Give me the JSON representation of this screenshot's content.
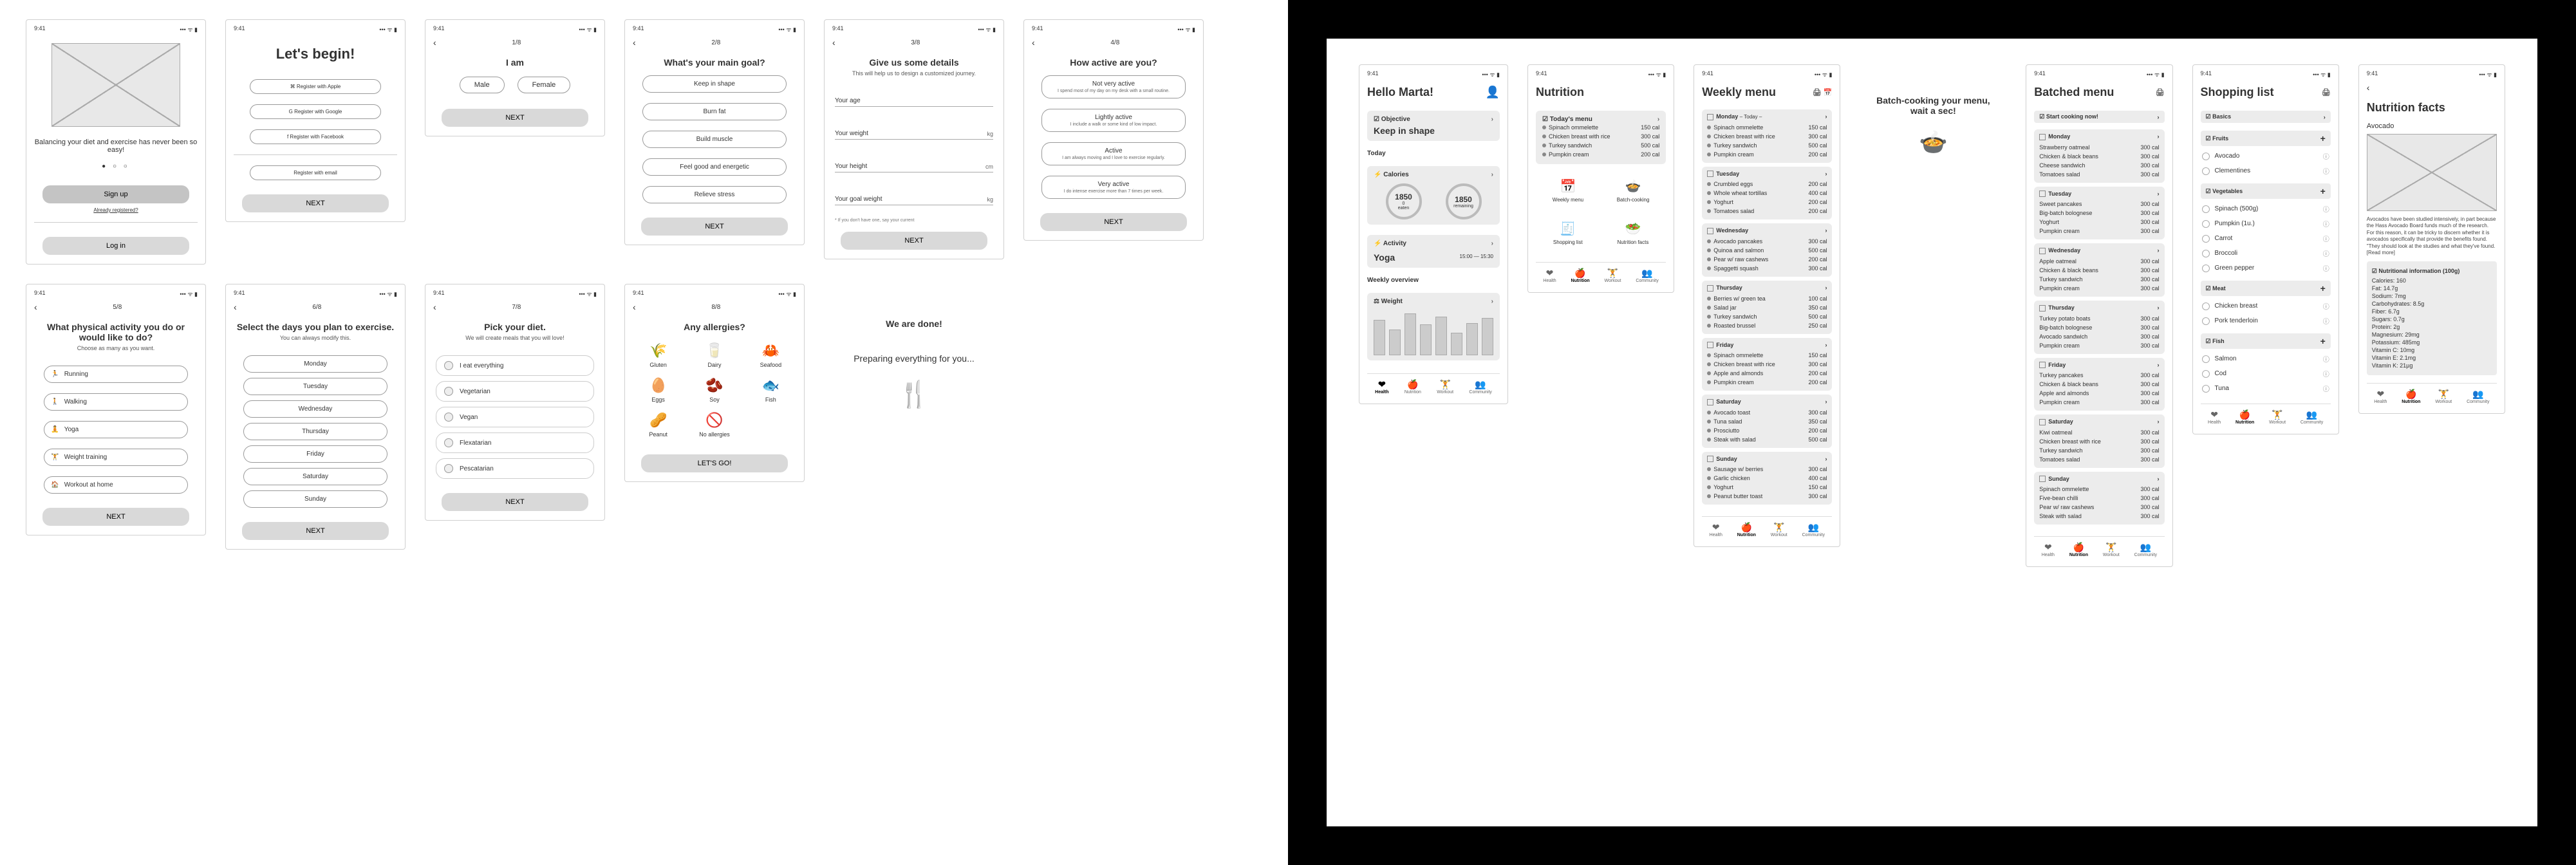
{
  "status": {
    "time": "9:41",
    "signal": "••• ᯤ ▮"
  },
  "nav": {
    "back": "‹"
  },
  "onboard": {
    "welcome": {
      "tagline": "Balancing your diet and exercise has never been so easy!",
      "signup": "Sign up",
      "login": "Log in",
      "already": "Already registered?"
    },
    "begin": {
      "title": "Let's begin!",
      "apple": "⌘  Register with Apple",
      "google": "G  Register with Google",
      "facebook": "f  Register with Facebook",
      "email": "Register with email"
    },
    "gender": {
      "step": "1/8",
      "title": "I am",
      "male": "Male",
      "female": "Female"
    },
    "goal": {
      "step": "2/8",
      "title": "What's your main goal?",
      "o1": "Keep in shape",
      "o2": "Burn fat",
      "o3": "Build muscle",
      "o4": "Feel good and energetic",
      "o5": "Relieve stress"
    },
    "details": {
      "step": "3/8",
      "title": "Give us some details",
      "sub": "This will help us to design a customized journey.",
      "age": "Your age",
      "weight": "Your weight",
      "kg": "kg",
      "height": "Your height",
      "cm": "cm",
      "goalw": "Your goal weight",
      "note": "* If you don't have one, say your current"
    },
    "activity": {
      "step": "4/8",
      "title": "How active are you?",
      "o1": "Not very active",
      "o1s": "I spend most of my day on my desk with a small routine.",
      "o2": "Lightly active",
      "o2s": "I include a walk or some kind of low impact.",
      "o3": "Active",
      "o3s": "I am always moving and I love to exercise regularly.",
      "o4": "Very active",
      "o4s": "I do intense exercise more than 7 times per week."
    },
    "sport": {
      "step": "5/8",
      "title": "What physical activity you do or would like to do?",
      "sub": "Choose as many as you want.",
      "o1": "Running",
      "o2": "Walking",
      "o3": "Yoga",
      "o4": "Weight training",
      "o5": "Workout at home"
    },
    "days": {
      "step": "6/8",
      "title": "Select the days  you plan to exercise.",
      "sub": "You can always modify this.",
      "d": [
        "Monday",
        "Tuesday",
        "Wednesday",
        "Thursday",
        "Friday",
        "Saturday",
        "Sunday"
      ]
    },
    "diet": {
      "step": "7/8",
      "title": "Pick your diet.",
      "sub": "We will create meals that you will love!",
      "o": [
        "I eat everything",
        "Vegetarian",
        "Vegan",
        "Flexatarian",
        "Pescatarian"
      ]
    },
    "allergy": {
      "step": "8/8",
      "title": "Any allergies?",
      "items": [
        [
          "🌾",
          "Gluten"
        ],
        [
          "🥛",
          "Dairy"
        ],
        [
          "🦀",
          "Seafood"
        ],
        [
          "🥚",
          "Eggs"
        ],
        [
          "🫘",
          "Soy"
        ],
        [
          "🐟",
          "Fish"
        ],
        [
          "🥜",
          "Peanut"
        ],
        [
          "🚫",
          "No allergies"
        ]
      ],
      "go": "LET'S GO!"
    },
    "done": {
      "title": "We are done!",
      "sub": "Preparing everything for you..."
    },
    "next": "NEXT"
  },
  "app": {
    "home": {
      "hello": "Hello Marta!",
      "objective_h": "☑ Objective",
      "goal": "Keep in shape",
      "today": "Today",
      "cal_h": "⚡ Calories",
      "cal_v": "1850",
      "cal_u": "eaten",
      "cal_r": "1850",
      "cal_ru": "remaining",
      "zero": "0",
      "act_h": "⚡ Activity",
      "act_v": "Yoga",
      "act_t": "15:00 — 15:30",
      "overview": "Weekly overview",
      "weight_h": "⚖ Weight",
      "bars": [
        55,
        40,
        65,
        48,
        60,
        35,
        50,
        58
      ]
    },
    "nutrition": {
      "title": "Nutrition",
      "today_h": "☑ Today's menu",
      "meals": [
        [
          "Spinach ommelette",
          "150 cal"
        ],
        [
          "Chicken breast with rice",
          "300 cal"
        ],
        [
          "Turkey sandwich",
          "500 cal"
        ],
        [
          "Pumpkin cream",
          "200 cal"
        ]
      ],
      "icons": [
        [
          "📅",
          "Weekly menu"
        ],
        [
          "🍲",
          "Batch-cooking"
        ]
      ],
      "icons2": [
        [
          "🧾",
          "Shopping list"
        ],
        [
          "🥗",
          "Nutrition facts"
        ]
      ]
    },
    "weekly": {
      "title": "Weekly menu",
      "days": {
        "Monday": [
          [
            "Spinach ommelette",
            "150 cal"
          ],
          [
            "Chicken breast with rice",
            "300 cal"
          ],
          [
            "Turkey sandwich",
            "500 cal"
          ],
          [
            "Pumpkin cream",
            "200 cal"
          ]
        ],
        "Tuesday": [
          [
            "Crumbled eggs",
            "200 cal"
          ],
          [
            "Whole wheat tortillas",
            "400 cal"
          ],
          [
            "Yoghurt",
            "200 cal"
          ],
          [
            "Tomatoes salad",
            "200 cal"
          ]
        ],
        "Wednesday": [
          [
            "Avocado pancakes",
            "300 cal"
          ],
          [
            "Quinoa and salmon",
            "500 cal"
          ],
          [
            "Pear w/ raw cashews",
            "200 cal"
          ],
          [
            "Spaggetti squash",
            "300 cal"
          ]
        ],
        "Thursday": [
          [
            "Berries w/ green tea",
            "100 cal"
          ],
          [
            "Salad jar",
            "350 cal"
          ],
          [
            "Turkey sandwich",
            "500 cal"
          ],
          [
            "Roasted brussel",
            "250 cal"
          ]
        ],
        "Friday": [
          [
            "Spinach ommelette",
            "150 cal"
          ],
          [
            "Chicken breast with rice",
            "300 cal"
          ],
          [
            "Apple and almonds",
            "200 cal"
          ],
          [
            "Pumpkin cream",
            "200 cal"
          ]
        ],
        "Saturday": [
          [
            "Avocado toast",
            "300 cal"
          ],
          [
            "Tuna salad",
            "350 cal"
          ],
          [
            "Prosciutto",
            "200 cal"
          ],
          [
            "Steak with salad",
            "500 cal"
          ]
        ],
        "Sunday": [
          [
            "Sausage w/ berries",
            "300 cal"
          ],
          [
            "Garlic chicken",
            "400 cal"
          ],
          [
            "Yoghurt",
            "150 cal"
          ],
          [
            "Peanut butter toast",
            "300 cal"
          ]
        ]
      },
      "tip": "– Today –"
    },
    "loading": {
      "title": "Batch-cooking your menu, wait a sec!"
    },
    "batched": {
      "title": "Batched menu",
      "start": "☑ Start cooking now!",
      "days": {
        "Monday": [
          "Strawberry oatmeal",
          "Chicken & black beans",
          "Cheese sandwich",
          "Tomatoes salad"
        ],
        "Tuesday": [
          "Sweet pancakes",
          "Big-batch bolognese",
          "Yoghurt",
          "Pumpkin cream"
        ],
        "Wednesday": [
          "Apple oatmeal",
          "Chicken & black beans",
          "Turkey sandwich",
          "Pumpkin cream"
        ],
        "Thursday": [
          "Turkey potato boats",
          "Big-batch bolognese",
          "Avocado sandwich",
          "Pumpkin cream"
        ],
        "Friday": [
          "Turkey pancakes",
          "Chicken & black beans",
          "Apple and almonds",
          "Pumpkin cream"
        ],
        "Saturday": [
          "Kiwi oatmeal",
          "Chicken breast with rice",
          "Turkey sandwich",
          "Tomatoes salad"
        ],
        "Sunday": [
          "Spinach ommelette",
          "Five-bean chilli",
          "Pear w/ raw cashews",
          "Steak with salad"
        ]
      }
    },
    "shopping": {
      "title": "Shopping list",
      "basics_h": "☑ Basics",
      "sections": {
        "Fruits": [
          "Avocado",
          "Clementines"
        ],
        "Vegetables": [
          "Spinach (500g)",
          "Pumpkin (1u.)",
          "Carrot",
          "Broccoli",
          "Green pepper"
        ],
        "Meat": [
          "Chicken breast",
          "Pork tenderloin"
        ],
        "Fish": [
          "Salmon",
          "Cod",
          "Tuna"
        ]
      }
    },
    "facts": {
      "title": "Nutrition facts",
      "item": "Avocado",
      "desc": "Avocados have been studied intensively, in part because the Hass Avocado Board funds much of the research. For this reason, it can be tricky to discern whether it is avocados specifically that provide the benefits found. \"They should look at the studies and what they've found. [Read more]",
      "info_h": "☑ Nutritional information (100g)",
      "rows": [
        "Calories: 160",
        "Fat: 14.7g",
        "Sodium: 7mg",
        "Carbohydrates: 8.5g",
        "Fiber: 6.7g",
        "Sugars: 0.7g",
        "Protein: 2g",
        "Magnesium: 29mg",
        "Potassium: 485mg",
        "Vitamin C: 10mg",
        "Vitamin E: 2.1mg",
        "Vitamin K: 21µg"
      ]
    },
    "tabs": [
      [
        "❤",
        "Health"
      ],
      [
        "🍎",
        "Nutrition"
      ],
      [
        "🏋",
        "Workout"
      ],
      [
        "👥",
        "Community"
      ]
    ]
  }
}
